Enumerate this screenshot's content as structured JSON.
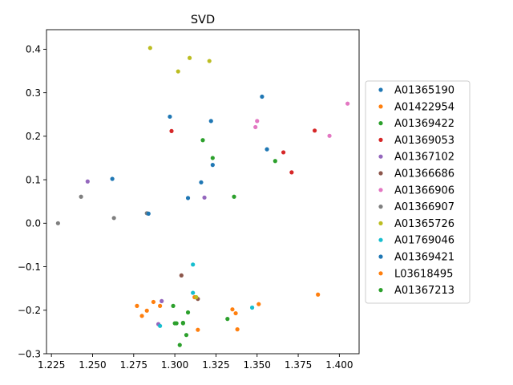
{
  "chart_data": {
    "type": "scatter",
    "title": "SVD",
    "xlabel": "",
    "ylabel": "",
    "xlim": [
      1.222,
      1.412
    ],
    "ylim": [
      -0.3,
      0.445
    ],
    "xticks": [
      1.225,
      1.25,
      1.275,
      1.3,
      1.325,
      1.35,
      1.375,
      1.4
    ],
    "xtick_labels": [
      "1.225",
      "1.250",
      "1.275",
      "1.300",
      "1.325",
      "1.350",
      "1.375",
      "1.400"
    ],
    "yticks": [
      -0.3,
      -0.2,
      -0.1,
      0.0,
      0.1,
      0.2,
      0.3,
      0.4
    ],
    "ytick_labels": [
      "−0.3",
      "−0.2",
      "−0.1",
      "0.0",
      "0.1",
      "0.2",
      "0.3",
      "0.4"
    ],
    "legend_position": "right",
    "grid": false,
    "series": [
      {
        "name": "A01365190",
        "color": "#1f77b4",
        "points": [
          [
            1.297,
            0.245
          ],
          [
            1.322,
            0.235
          ],
          [
            1.323,
            0.134
          ],
          [
            1.353,
            0.291
          ],
          [
            1.356,
            0.17
          ],
          [
            1.316,
            0.094
          ],
          [
            1.308,
            0.058
          ]
        ]
      },
      {
        "name": "A01422954",
        "color": "#ff7f0e",
        "points": [
          [
            1.387,
            -0.164
          ],
          [
            1.351,
            -0.186
          ],
          [
            1.335,
            -0.198
          ],
          [
            1.338,
            -0.244
          ],
          [
            1.314,
            -0.245
          ],
          [
            1.312,
            -0.17
          ],
          [
            1.287,
            -0.181
          ],
          [
            1.283,
            -0.201
          ],
          [
            1.28,
            -0.213
          ],
          [
            1.277,
            -0.19
          ]
        ]
      },
      {
        "name": "A01369422",
        "color": "#2ca02c",
        "points": [
          [
            1.317,
            0.191
          ],
          [
            1.323,
            0.15
          ],
          [
            1.361,
            0.143
          ],
          [
            1.336,
            0.061
          ],
          [
            1.308,
            -0.205
          ],
          [
            1.299,
            -0.19
          ],
          [
            1.301,
            -0.23
          ],
          [
            1.305,
            -0.229
          ],
          [
            1.307,
            -0.257
          ],
          [
            1.303,
            -0.28
          ],
          [
            1.332,
            -0.22
          ]
        ]
      },
      {
        "name": "A01369053",
        "color": "#d62728",
        "points": [
          [
            1.298,
            0.212
          ],
          [
            1.366,
            0.163
          ],
          [
            1.371,
            0.117
          ],
          [
            1.385,
            0.213
          ]
        ]
      },
      {
        "name": "A01367102",
        "color": "#9467bd",
        "points": [
          [
            1.247,
            0.096
          ],
          [
            1.318,
            0.059
          ],
          [
            1.292,
            -0.179
          ],
          [
            1.29,
            -0.232
          ]
        ]
      },
      {
        "name": "A01366686",
        "color": "#8c564b",
        "points": [
          [
            1.304,
            -0.12
          ],
          [
            1.314,
            -0.174
          ]
        ]
      },
      {
        "name": "A01366906",
        "color": "#e377c2",
        "points": [
          [
            1.35,
            0.235
          ],
          [
            1.349,
            0.221
          ],
          [
            1.394,
            0.201
          ],
          [
            1.405,
            0.275
          ]
        ]
      },
      {
        "name": "A01366907",
        "color": "#7f7f7f",
        "points": [
          [
            1.229,
            0.0
          ],
          [
            1.243,
            0.061
          ],
          [
            1.263,
            0.012
          ],
          [
            1.283,
            0.023
          ]
        ]
      },
      {
        "name": "A01365726",
        "color": "#bcbd22",
        "points": [
          [
            1.285,
            0.403
          ],
          [
            1.309,
            0.38
          ],
          [
            1.321,
            0.373
          ],
          [
            1.302,
            0.349
          ],
          [
            1.313,
            -0.17
          ]
        ]
      },
      {
        "name": "A01769046",
        "color": "#17becf",
        "points": [
          [
            1.311,
            -0.095
          ],
          [
            1.311,
            -0.16
          ],
          [
            1.347,
            -0.194
          ],
          [
            1.291,
            -0.236
          ]
        ]
      },
      {
        "name": "A01369421",
        "color": "#1f77b4",
        "points": [
          [
            1.262,
            0.102
          ],
          [
            1.284,
            0.022
          ]
        ]
      },
      {
        "name": "L03618495",
        "color": "#ff7f0e",
        "points": [
          [
            1.337,
            -0.207
          ],
          [
            1.291,
            -0.19
          ]
        ]
      },
      {
        "name": "A01367213",
        "color": "#2ca02c",
        "points": [
          [
            1.3,
            -0.23
          ],
          [
            1.305,
            -0.23
          ]
        ]
      }
    ]
  }
}
